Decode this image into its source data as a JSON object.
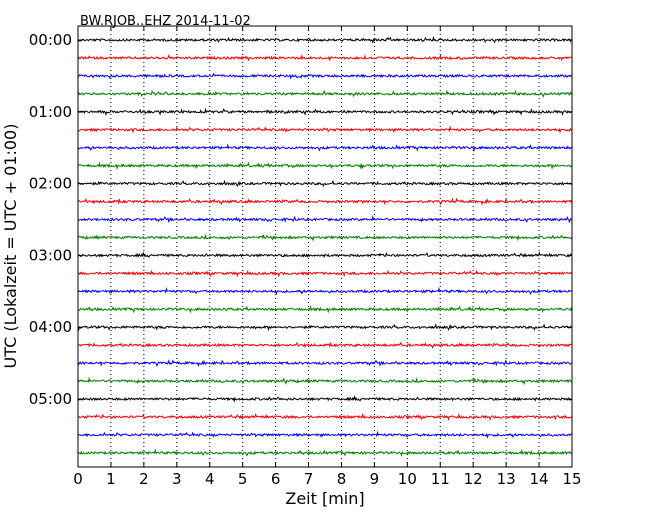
{
  "chart_data": {
    "type": "line",
    "plot_kind": "dayplot (seismogram)",
    "title": "BW.RJOB..EHZ 2014-11-02",
    "xlabel": "Zeit  [min]",
    "ylabel": "UTC (Lokalzeit = UTC + 01:00)",
    "xlim": [
      0,
      15
    ],
    "x_ticks": [
      "0",
      "1",
      "2",
      "3",
      "4",
      "5",
      "6",
      "7",
      "8",
      "9",
      "10",
      "11",
      "12",
      "13",
      "14",
      "15"
    ],
    "y_ticks": [
      "00:00",
      "01:00",
      "02:00",
      "03:00",
      "04:00",
      "05:00"
    ],
    "y_tick_trace_index": [
      0,
      4,
      8,
      12,
      16,
      20
    ],
    "trace_interval_min": 15,
    "trace_count": 24,
    "trace_colors": [
      "#000000",
      "#ff0000",
      "#0000ff",
      "#008000"
    ],
    "grid": {
      "x": "dotted vertical lines at each minute",
      "y": false
    }
  }
}
